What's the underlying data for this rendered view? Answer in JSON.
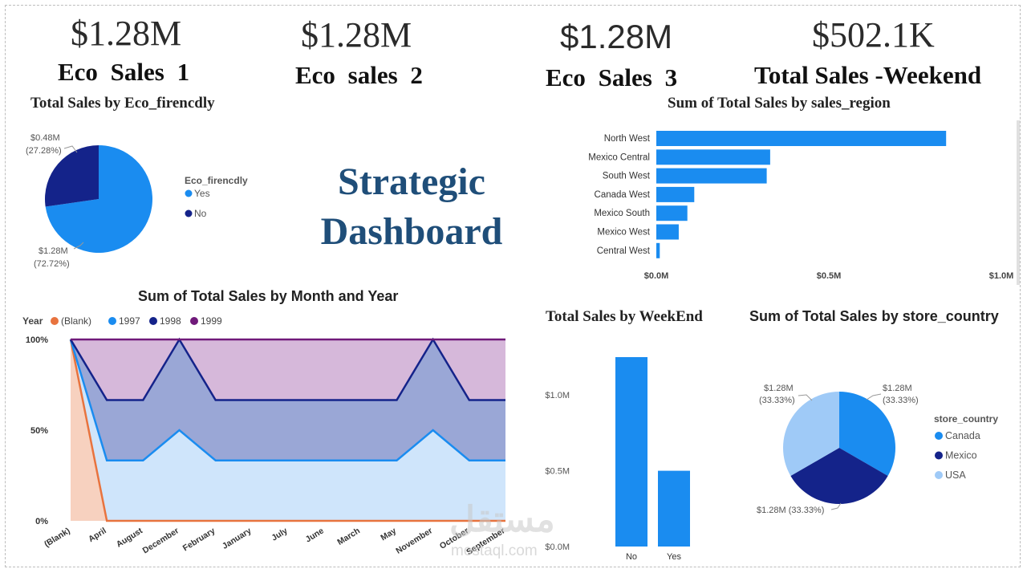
{
  "kpis": [
    {
      "value": "$1.28M",
      "label": "Eco  Sales  1"
    },
    {
      "value": "$1.28M",
      "label": "Eco  sales  2"
    },
    {
      "value": "$1.28M",
      "label": "Eco  Sales  3"
    },
    {
      "value": "$502.1K",
      "label": "Total Sales -Weekend"
    }
  ],
  "hero_title": [
    "Strategic",
    "Dashboard"
  ],
  "watermark": {
    "arabic": "مستقل",
    "latin": "mostaql.com"
  },
  "chart_data": [
    {
      "type": "pie",
      "title": "Total Sales by Eco_firencdly",
      "legend_title": "Eco_firencdly",
      "legend_position": "right",
      "slices": [
        {
          "name": "Yes",
          "value": 1.28,
          "label": "$1.28M",
          "pct_label": "(72.72%)",
          "color": "#1a8cf0"
        },
        {
          "name": "No",
          "value": 0.48,
          "label": "$0.48M",
          "pct_label": "(27.28%)",
          "color": "#14238a"
        }
      ]
    },
    {
      "type": "bar",
      "orientation": "horizontal",
      "title": "Sum of Total Sales by sales_region",
      "categories": [
        "North West",
        "Mexico Central",
        "South West",
        "Canada West",
        "Mexico South",
        "Mexico West",
        "Central West"
      ],
      "values": [
        0.84,
        0.33,
        0.32,
        0.11,
        0.09,
        0.065,
        0.01
      ],
      "xlim": [
        0,
        1.0
      ],
      "xticks": [
        {
          "v": 0,
          "t": "$0.0M"
        },
        {
          "v": 0.5,
          "t": "$0.5M"
        },
        {
          "v": 1.0,
          "t": "$1.0M"
        }
      ],
      "color": "#1a8cf0"
    },
    {
      "type": "area",
      "stacked": "100%",
      "title": "Sum of Total Sales by Month and Year",
      "legend_title": "Year",
      "legend_position": "top-left",
      "categories": [
        "(Blank)",
        "April",
        "August",
        "December",
        "February",
        "January",
        "July",
        "June",
        "March",
        "May",
        "November",
        "October",
        "September"
      ],
      "yticks": [
        {
          "v": 0,
          "t": "0%"
        },
        {
          "v": 50,
          "t": "50%"
        },
        {
          "v": 100,
          "t": "100%"
        }
      ],
      "series": [
        {
          "name": "(Blank)",
          "color": "#e8733e",
          "values": [
            100,
            0,
            0,
            0,
            0,
            0,
            0,
            0,
            0,
            0,
            0,
            0,
            0
          ]
        },
        {
          "name": "1997",
          "color": "#1a8cf0",
          "values": [
            0,
            33.3,
            33.3,
            50,
            33.3,
            33.3,
            33.3,
            33.3,
            33.3,
            33.3,
            50,
            33.3,
            33.3
          ]
        },
        {
          "name": "1998",
          "color": "#14238a",
          "values": [
            0,
            33.3,
            33.3,
            50,
            33.3,
            33.3,
            33.3,
            33.3,
            33.3,
            33.3,
            50,
            33.3,
            33.3
          ]
        },
        {
          "name": "1999",
          "color": "#701a7a",
          "values": [
            0,
            33.4,
            33.4,
            0,
            33.4,
            33.4,
            33.4,
            33.4,
            33.4,
            33.4,
            0,
            33.4,
            33.4
          ]
        }
      ]
    },
    {
      "type": "bar",
      "orientation": "vertical",
      "title": "Total Sales by WeekEnd",
      "categories": [
        "No",
        "Yes"
      ],
      "values": [
        1.25,
        0.5
      ],
      "ylim": [
        0,
        1.25
      ],
      "yticks": [
        {
          "v": 0,
          "t": "$0.0M"
        },
        {
          "v": 0.5,
          "t": "$0.5M"
        },
        {
          "v": 1.0,
          "t": "$1.0M"
        }
      ],
      "color": "#1a8cf0"
    },
    {
      "type": "pie",
      "title": "Sum of Total Sales by store_country",
      "legend_title": "store_country",
      "legend_position": "right",
      "slices": [
        {
          "name": "Canada",
          "value": 1.28,
          "label": "$1.28M",
          "pct_label": "(33.33%)",
          "color": "#1a8cf0"
        },
        {
          "name": "Mexico",
          "value": 1.28,
          "label": "$1.28M (33.33%)",
          "pct_label": "",
          "color": "#14238a"
        },
        {
          "name": "USA",
          "value": 1.28,
          "label": "$1.28M",
          "pct_label": "(33.33%)",
          "color": "#9fcaf7"
        }
      ]
    }
  ]
}
